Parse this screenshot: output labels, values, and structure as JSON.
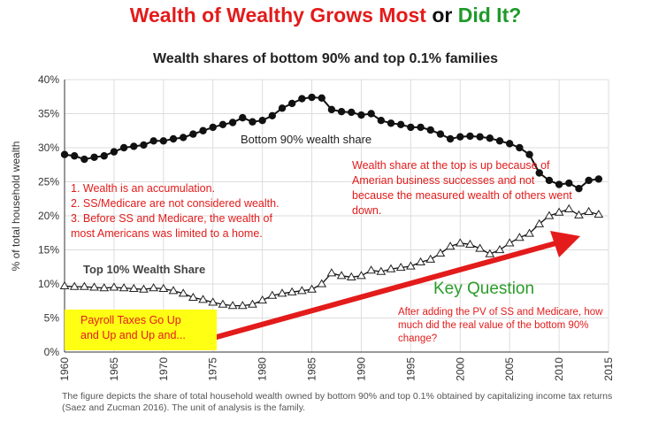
{
  "headline": {
    "part1": "Wealth of Wealthy Grows Most",
    "part2": " or ",
    "part3": "Did It?",
    "color1": "#e31b1b",
    "color2": "#111111",
    "color3": "#1f9a2a"
  },
  "annotations": {
    "left_notes": [
      "1. Wealth is an accumulation.",
      "2. SS/Medicare are not considered wealth.",
      "3. Before SS and Medicare, the wealth of",
      "most Americans was limited to a home."
    ],
    "right_note": "Wealth share at the top is up because of Amerian business successes and not because the measured wealth of others went down.",
    "key_question_title": "Key Question",
    "key_question_body": "After adding the PV of SS and Medicare, how much did the real value of the bottom 90% change?",
    "yellow_box": [
      "Payroll Taxes Go Up",
      "and Up and Up and..."
    ],
    "bottom_series_label": "Bottom 90% wealth share",
    "top_series_label": "Top 10% Wealth Share"
  },
  "caption": "The figure depicts the share of total household wealth owned by bottom 90% and top 0.1% obtained by capitalizing income tax returns (Saez and Zucman 2016). The unit of analysis is the family.",
  "chart_data": {
    "type": "line",
    "title": "Wealth shares of bottom 90% and top 0.1% families",
    "xlabel": "",
    "ylabel": "% of total household wealth",
    "xlim": [
      1960,
      2015
    ],
    "ylim": [
      0,
      40
    ],
    "x_ticks": [
      1960,
      1965,
      1970,
      1975,
      1980,
      1985,
      1990,
      1995,
      2000,
      2005,
      2010,
      2015
    ],
    "y_ticks": [
      0,
      5,
      10,
      15,
      20,
      25,
      30,
      35,
      40
    ],
    "y_tick_labels": [
      "0%",
      "5%",
      "10%",
      "15%",
      "20%",
      "25%",
      "30%",
      "35%",
      "40%"
    ],
    "grid": true,
    "series": [
      {
        "name": "Bottom 90% wealth share",
        "marker": "circle",
        "color": "#111111",
        "x": [
          1960,
          1961,
          1962,
          1963,
          1964,
          1965,
          1966,
          1967,
          1968,
          1969,
          1970,
          1971,
          1972,
          1973,
          1974,
          1975,
          1976,
          1977,
          1978,
          1979,
          1980,
          1981,
          1982,
          1983,
          1984,
          1985,
          1986,
          1987,
          1988,
          1989,
          1990,
          1991,
          1992,
          1993,
          1994,
          1995,
          1996,
          1997,
          1998,
          1999,
          2000,
          2001,
          2002,
          2003,
          2004,
          2005,
          2006,
          2007,
          2008,
          2009,
          2010,
          2011,
          2012,
          2013,
          2014
        ],
        "values": [
          29.0,
          28.8,
          28.3,
          28.6,
          28.8,
          29.4,
          30.0,
          30.2,
          30.4,
          31.0,
          31.0,
          31.3,
          31.5,
          32.0,
          32.5,
          33.0,
          33.4,
          33.7,
          34.4,
          33.8,
          34.0,
          34.7,
          35.8,
          36.5,
          37.2,
          37.4,
          37.3,
          35.6,
          35.3,
          35.2,
          34.8,
          35.0,
          34.0,
          33.6,
          33.4,
          33.0,
          33.0,
          32.6,
          32.0,
          31.3,
          31.6,
          31.7,
          31.6,
          31.4,
          31.0,
          30.6,
          30.0,
          29.0,
          26.3,
          25.2,
          24.6,
          24.8,
          24.0,
          25.2,
          25.4
        ]
      },
      {
        "name": "Top 10% Wealth Share",
        "marker": "triangle",
        "color": "#111111",
        "x": [
          1960,
          1961,
          1962,
          1963,
          1964,
          1965,
          1966,
          1967,
          1968,
          1969,
          1970,
          1971,
          1972,
          1973,
          1974,
          1975,
          1976,
          1977,
          1978,
          1979,
          1980,
          1981,
          1982,
          1983,
          1984,
          1985,
          1986,
          1987,
          1988,
          1989,
          1990,
          1991,
          1992,
          1993,
          1994,
          1995,
          1996,
          1997,
          1998,
          1999,
          2000,
          2001,
          2002,
          2003,
          2004,
          2005,
          2006,
          2007,
          2008,
          2009,
          2010,
          2011,
          2012,
          2013,
          2014
        ],
        "values": [
          9.7,
          9.6,
          9.6,
          9.5,
          9.4,
          9.5,
          9.4,
          9.3,
          9.2,
          9.4,
          9.3,
          9.0,
          8.6,
          8.0,
          7.7,
          7.3,
          7.0,
          6.8,
          6.8,
          7.0,
          7.6,
          8.3,
          8.6,
          8.8,
          9.0,
          9.2,
          10.0,
          11.6,
          11.2,
          11.0,
          11.2,
          12.0,
          11.8,
          12.2,
          12.4,
          12.6,
          13.2,
          13.6,
          14.5,
          15.5,
          16.0,
          15.8,
          15.2,
          14.4,
          15.0,
          16.0,
          16.8,
          17.4,
          18.8,
          20.0,
          20.5,
          21.0,
          20.1,
          20.6,
          20.2
        ]
      }
    ]
  },
  "arrow": {
    "color": "#e31b1b"
  },
  "colors": {
    "grid": "#dddddd",
    "axis": "#333333",
    "annotation_red": "#e31b1b",
    "highlight_yellow": "#ffff14"
  }
}
